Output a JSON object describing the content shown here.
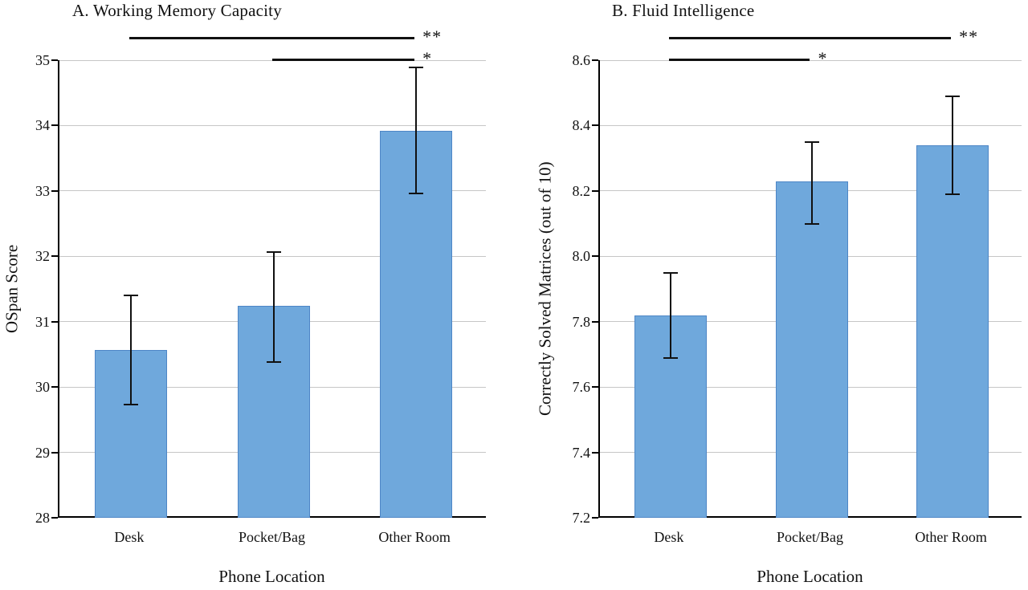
{
  "chart_data": [
    {
      "type": "bar",
      "title": "A. Working Memory Capacity",
      "xlabel": "Phone Location",
      "ylabel": "OSpan Score",
      "categories": [
        "Desk",
        "Pocket/Bag",
        "Other Room"
      ],
      "values": [
        30.57,
        31.24,
        33.92
      ],
      "error_low": [
        29.73,
        30.38,
        32.96
      ],
      "error_high": [
        31.4,
        32.06,
        34.89
      ],
      "ylim": [
        28,
        35
      ],
      "ytick_step": 1,
      "ytick_labels": [
        "28",
        "29",
        "30",
        "31",
        "32",
        "33",
        "34",
        "35"
      ],
      "grid": true,
      "legend": "none",
      "bar_color": "#6fa8dc",
      "bar_border_color": "#4e86c6",
      "significance": [
        {
          "from": 0,
          "to": 2,
          "label": "**",
          "level": 0
        },
        {
          "from": 1,
          "to": 2,
          "label": "*",
          "level": 1
        }
      ]
    },
    {
      "type": "bar",
      "title": "B. Fluid Intelligence",
      "xlabel": "Phone Location",
      "ylabel": "Correctly Solved Matrices (out of 10)",
      "categories": [
        "Desk",
        "Pocket/Bag",
        "Other Room"
      ],
      "values": [
        7.82,
        8.23,
        8.34
      ],
      "error_low": [
        7.69,
        8.1,
        8.19
      ],
      "error_high": [
        7.95,
        8.35,
        8.49
      ],
      "ylim": [
        7.2,
        8.6
      ],
      "ytick_step": 0.2,
      "ytick_labels": [
        "7.2",
        "7.4",
        "7.6",
        "7.8",
        "8.0",
        "8.2",
        "8.4",
        "8.6"
      ],
      "grid": true,
      "legend": "none",
      "bar_color": "#6fa8dc",
      "bar_border_color": "#4e86c6",
      "significance": [
        {
          "from": 0,
          "to": 2,
          "label": "**",
          "level": 0
        },
        {
          "from": 0,
          "to": 1,
          "label": "*",
          "level": 1
        }
      ]
    }
  ]
}
